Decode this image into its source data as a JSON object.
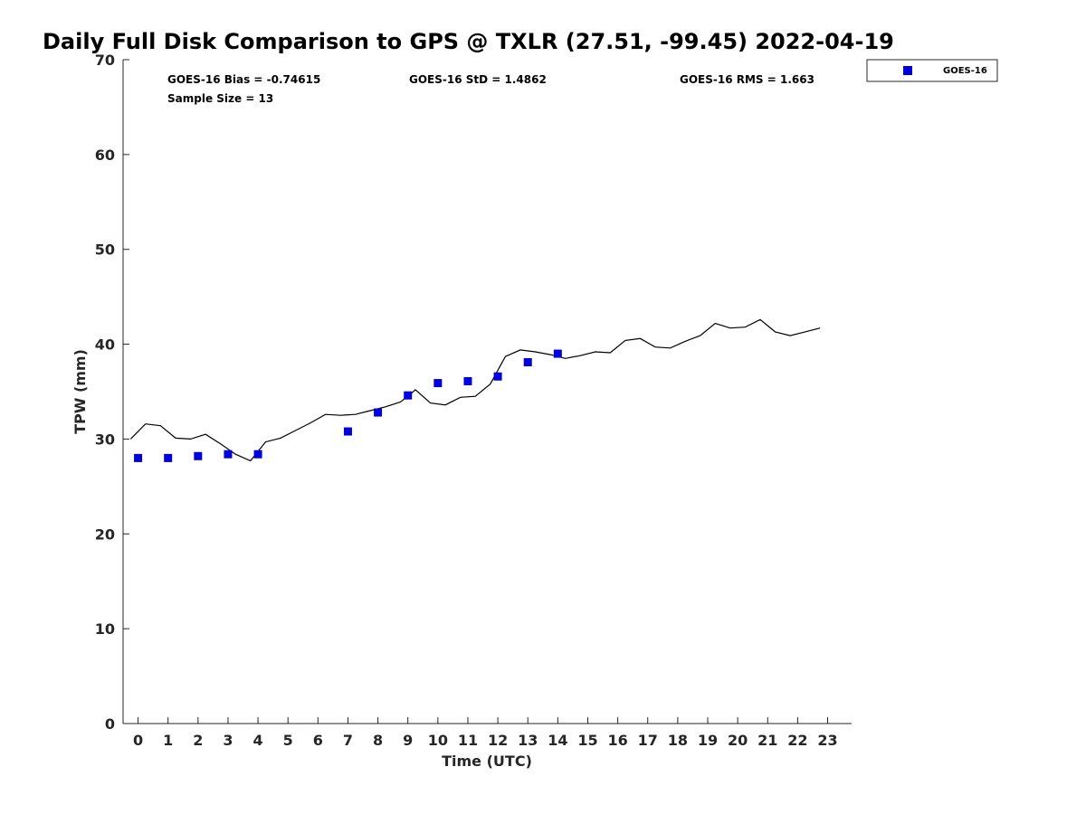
{
  "chart_data": {
    "type": "scatter",
    "title": "Daily Full Disk Comparison to GPS @ TXLR (27.51, -99.45) 2022-04-19",
    "xlabel": "Time (UTC)",
    "ylabel": "TPW (mm)",
    "xlim": [
      -0.5,
      23.8
    ],
    "ylim": [
      0,
      70
    ],
    "x_ticks": [
      0,
      1,
      2,
      3,
      4,
      5,
      6,
      7,
      8,
      9,
      10,
      11,
      12,
      13,
      14,
      15,
      16,
      17,
      18,
      19,
      20,
      21,
      22,
      23
    ],
    "y_ticks": [
      0,
      10,
      20,
      30,
      40,
      50,
      60,
      70
    ],
    "grid": false,
    "legend_position": "top-right-outside",
    "stats": {
      "bias": "GOES-16 Bias = -0.74615",
      "std": "GOES-16 StD = 1.4862",
      "rms": "GOES-16 RMS = 1.663",
      "sample": "Sample Size = 13"
    },
    "series": [
      {
        "name": "GOES-16",
        "type": "scatter",
        "marker": "square",
        "color": "#0000dd",
        "x": [
          0,
          1,
          2,
          3,
          4,
          7,
          8,
          9,
          10,
          11,
          12,
          13,
          14
        ],
        "y": [
          28.0,
          28.0,
          28.2,
          28.4,
          28.4,
          30.8,
          32.8,
          34.6,
          35.9,
          36.1,
          36.6,
          38.1,
          39.0
        ]
      },
      {
        "type": "line",
        "color": "#000000",
        "x": [
          -0.25,
          0.25,
          0.75,
          1.25,
          1.75,
          2.25,
          2.75,
          3.25,
          3.75,
          4.25,
          4.75,
          5.25,
          5.75,
          6.25,
          6.75,
          7.25,
          7.75,
          8.25,
          8.75,
          9.0,
          9.25,
          9.75,
          10.25,
          10.75,
          11.25,
          11.75,
          12.25,
          12.75,
          13.25,
          13.75,
          14.25,
          14.75,
          15.25,
          15.75,
          16.25,
          16.75,
          17.25,
          17.75,
          18.25,
          18.75,
          19.25,
          19.75,
          20.25,
          20.75,
          21.25,
          21.75,
          22.25,
          22.75
        ],
        "y": [
          30.0,
          31.6,
          31.4,
          30.1,
          30.0,
          30.5,
          29.5,
          28.4,
          27.7,
          29.7,
          30.1,
          30.9,
          31.7,
          32.6,
          32.5,
          32.6,
          33.0,
          33.4,
          33.9,
          34.5,
          35.2,
          33.8,
          33.6,
          34.4,
          34.5,
          35.8,
          38.7,
          39.4,
          39.2,
          38.9,
          38.5,
          38.8,
          39.2,
          39.1,
          40.4,
          40.6,
          39.7,
          39.6,
          40.3,
          40.9,
          42.2,
          41.7,
          41.8,
          42.6,
          41.3,
          40.9,
          41.3,
          41.7
        ]
      }
    ]
  }
}
